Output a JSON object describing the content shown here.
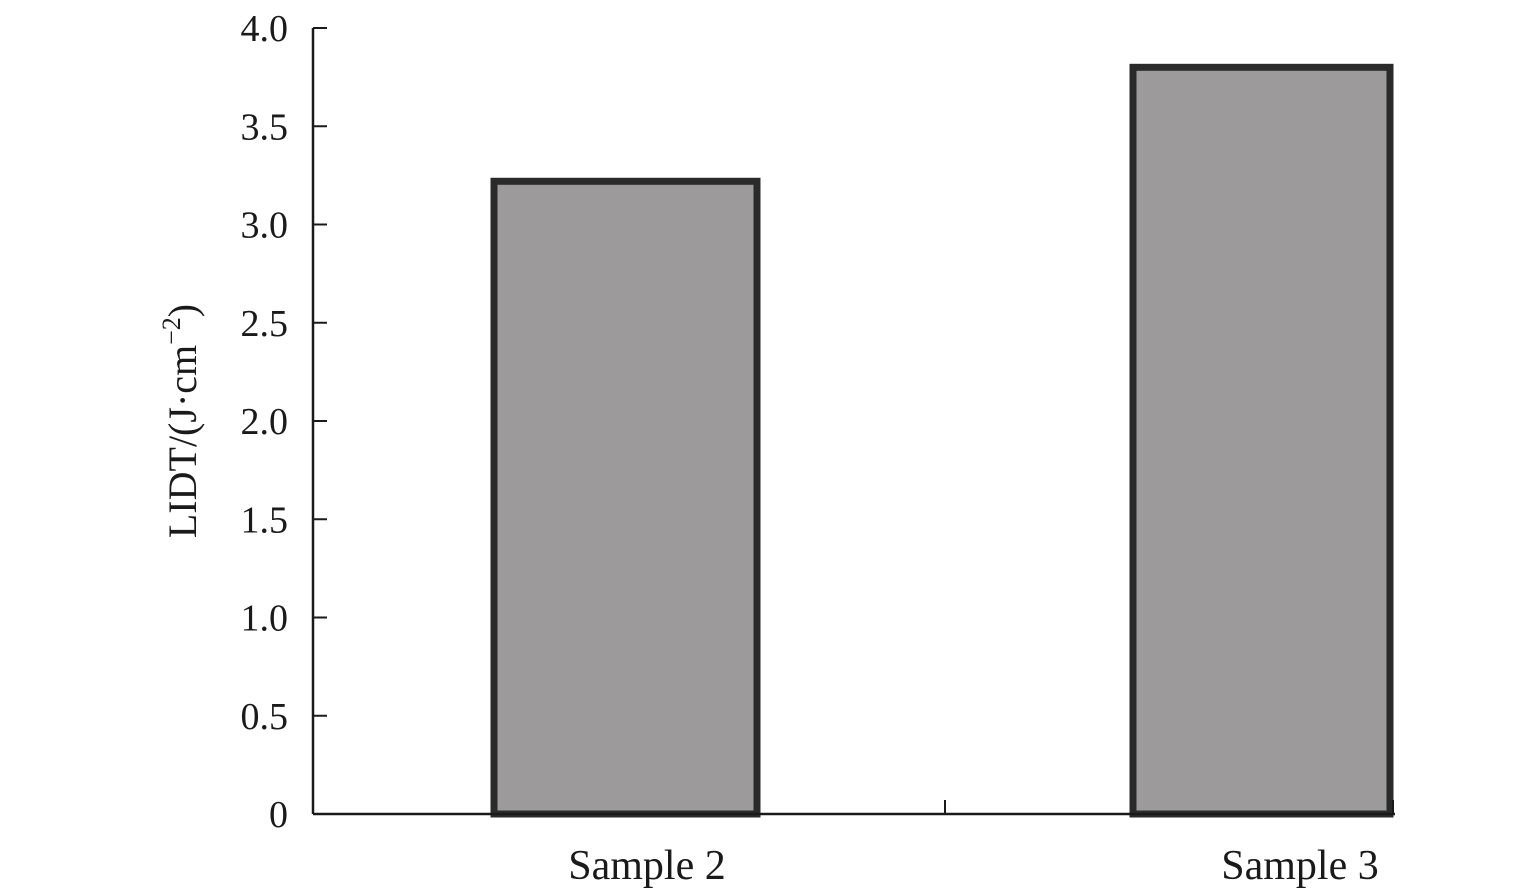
{
  "chart_data": {
    "type": "bar",
    "categories": [
      "Sample 2",
      "Sample 3"
    ],
    "values": [
      3.22,
      3.8
    ],
    "title": "",
    "xlabel": "",
    "ylabel_main": "LIDT/(J·cm",
    "ylabel_sup": "−2",
    "ylabel_end": ")",
    "ylim": [
      0,
      4.0
    ],
    "yticks": [
      "0",
      "0.5",
      "1.0",
      "1.5",
      "2.0",
      "2.5",
      "3.0",
      "3.5",
      "4.0"
    ],
    "ytick_values": [
      0,
      0.5,
      1.0,
      1.5,
      2.0,
      2.5,
      3.0,
      3.5,
      4.0
    ],
    "grid": false,
    "legend": "none",
    "bar_fill": "#9c9a9b",
    "bar_edge": "#2a2a2a"
  }
}
